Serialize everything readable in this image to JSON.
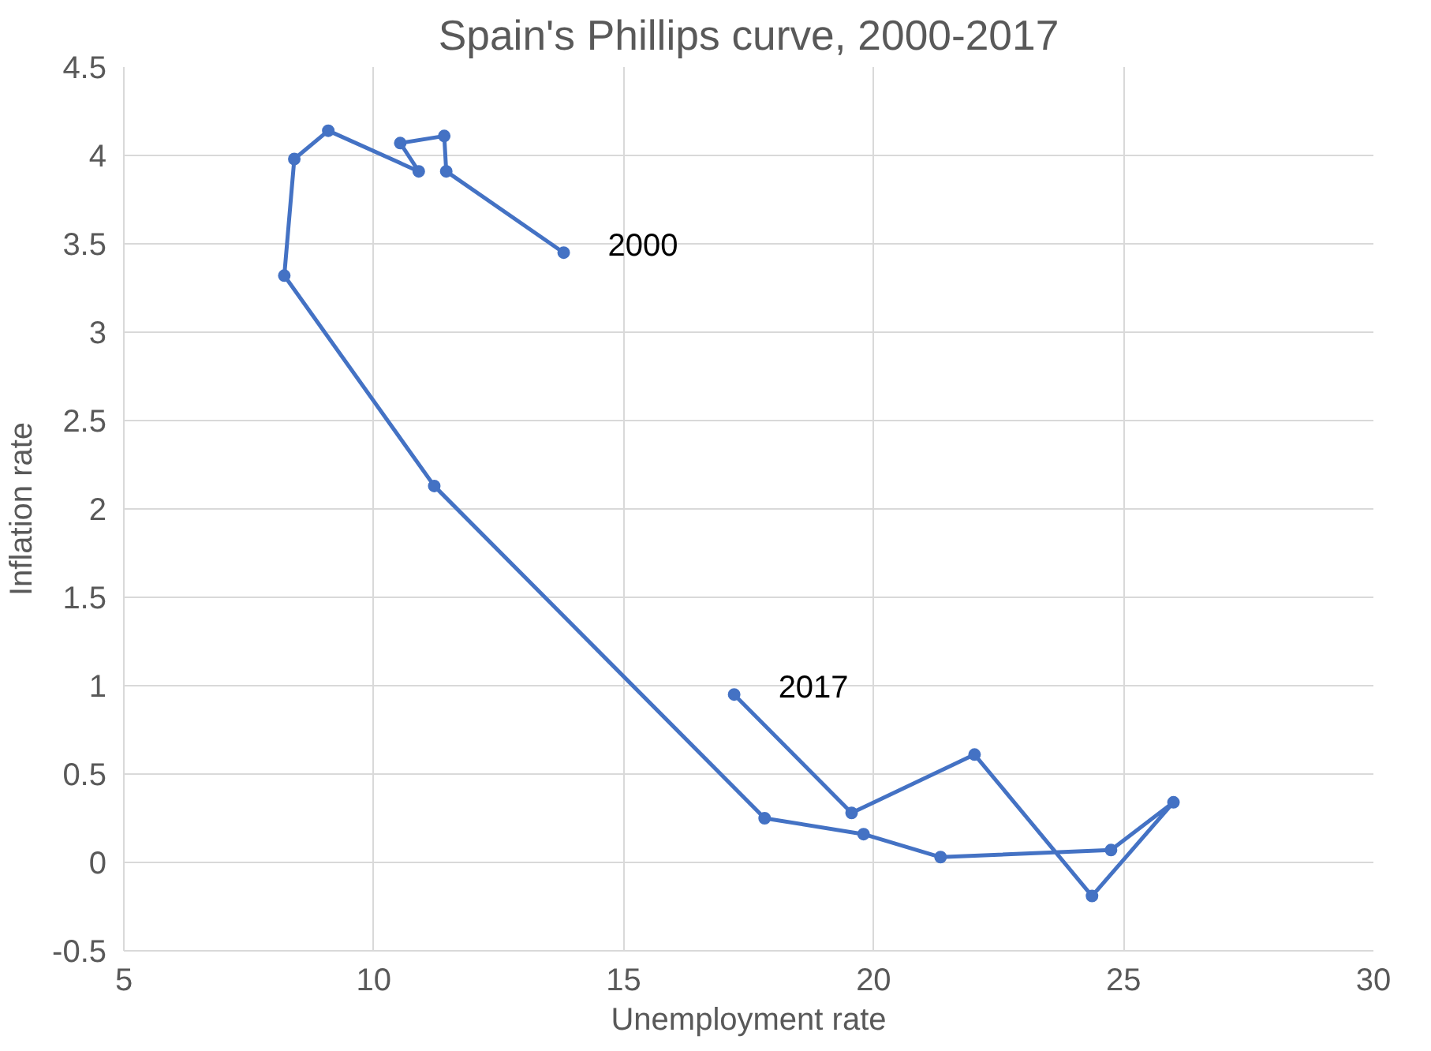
{
  "chart_data": {
    "type": "line",
    "title": "Spain's Phillips curve, 2000-2017",
    "xlabel": "Unemployment rate",
    "ylabel": "Inflation rate",
    "series": [
      {
        "color": "#4472c4",
        "x": [
          13.8,
          11.45,
          11.41,
          10.53,
          10.9,
          9.09,
          8.41,
          8.21,
          11.21,
          17.82,
          19.8,
          21.34,
          24.75,
          26.0,
          24.37,
          22.02,
          19.56,
          17.21
        ],
        "values": [
          3.45,
          3.91,
          4.11,
          4.07,
          3.91,
          4.14,
          3.98,
          3.32,
          2.13,
          0.25,
          0.16,
          0.03,
          0.07,
          0.34,
          -0.19,
          0.61,
          0.28,
          0.95
        ]
      }
    ],
    "annotations": [
      {
        "text": "2000",
        "x": 13.8,
        "y": 3.45
      },
      {
        "text": "2017",
        "x": 17.21,
        "y": 0.95
      }
    ],
    "xlim": [
      5,
      30
    ],
    "xticks": [
      5,
      10,
      15,
      20,
      25,
      30
    ],
    "ylim": [
      -0.5,
      4.5
    ],
    "yticks": [
      -0.5,
      0,
      0.5,
      1,
      1.5,
      2,
      2.5,
      3,
      3.5,
      4,
      4.5
    ],
    "grid": true,
    "marker": "circle",
    "line_style": "solid"
  }
}
